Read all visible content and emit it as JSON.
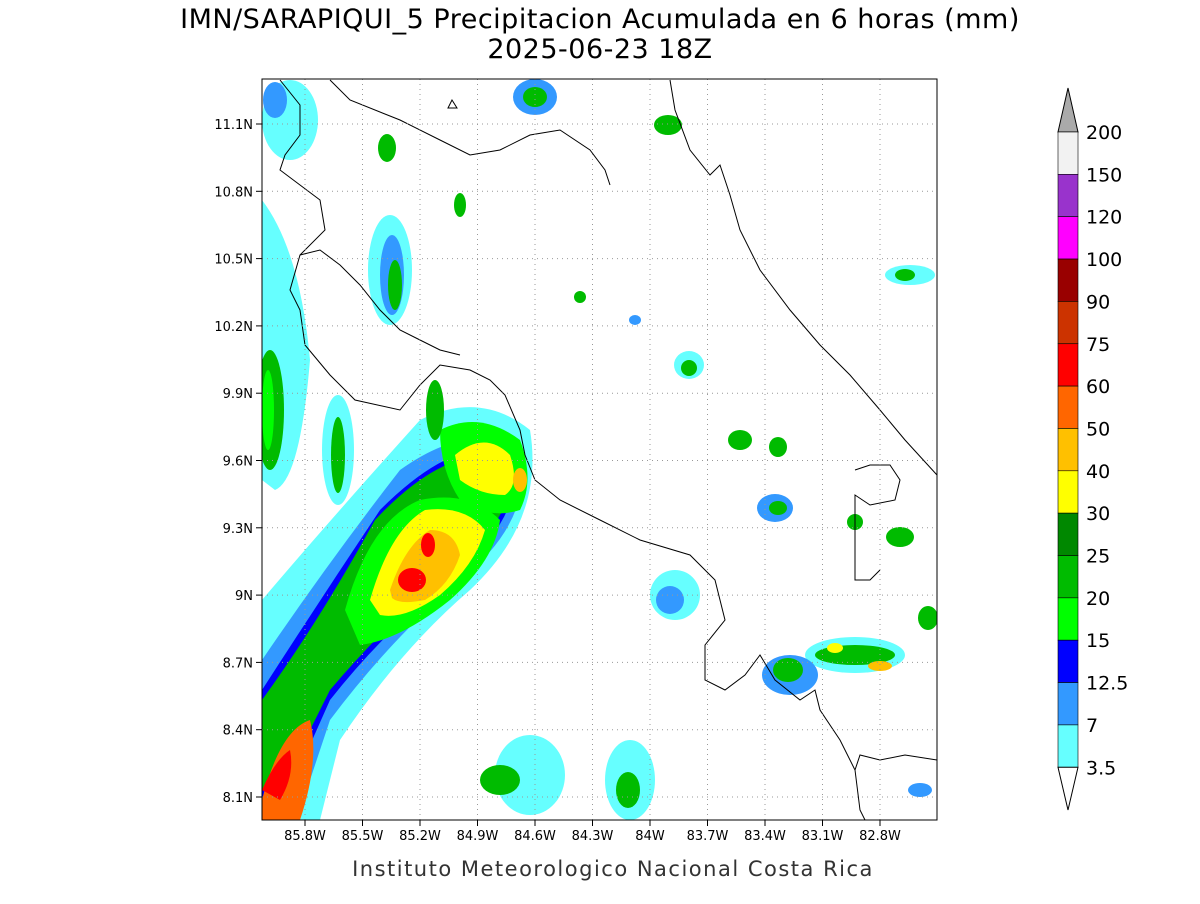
{
  "title": "IMN/SARAPIQUI_5 Precipitacion Acumulada en 6 horas (mm)",
  "subtitle": "2025-06-23 18Z",
  "map": {
    "lon_labels": [
      "85.8W",
      "85.5W",
      "85.2W",
      "84.9W",
      "84.6W",
      "84.3W",
      "84W",
      "83.7W",
      "83.4W",
      "83.1W",
      "82.8W"
    ],
    "lat_labels": [
      "11.1N",
      "10.8N",
      "10.5N",
      "10.2N",
      "9.9N",
      "9.6N",
      "9.3N",
      "9N",
      "8.7N",
      "8.4N",
      "8.1N"
    ]
  },
  "colorbar": {
    "labels": [
      "200",
      "150",
      "120",
      "100",
      "90",
      "75",
      "60",
      "50",
      "40",
      "30",
      "25",
      "20",
      "15",
      "12.5",
      "7",
      "3.5"
    ],
    "colors": [
      "#f2f2f2",
      "#9933cc",
      "#ff00ff",
      "#990000",
      "#cc3300",
      "#ff0000",
      "#ff6600",
      "#ffc000",
      "#ffff00",
      "#008800",
      "#00bb00",
      "#00ff00",
      "#0000ff",
      "#3399ff",
      "#66ffff"
    ],
    "over_color": "#aaaaaa",
    "under_color": "#ffffff"
  },
  "footer": "Instituto Meteorologico Nacional Costa Rica"
}
